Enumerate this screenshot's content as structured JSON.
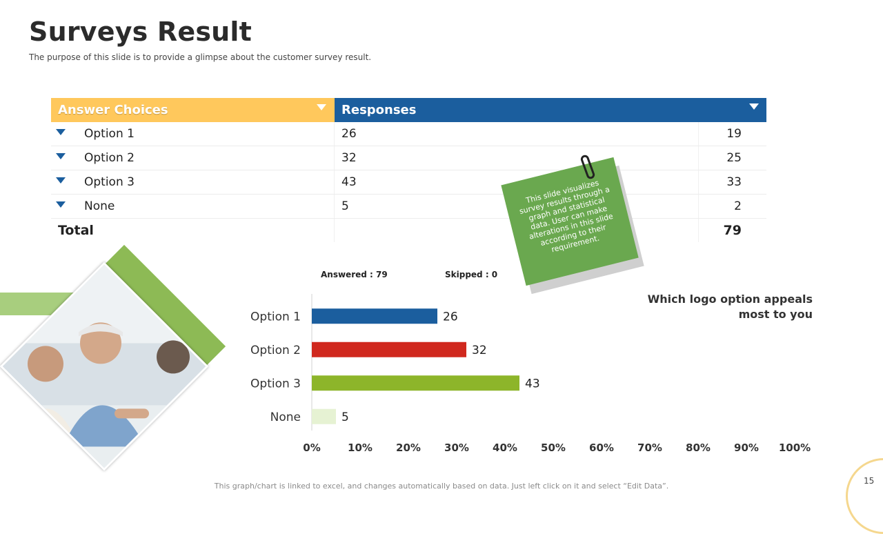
{
  "header": {
    "title": "Surveys Result",
    "subtitle": "The purpose of this slide is to provide a glimpse about the customer survey result."
  },
  "table": {
    "col_answer": "Answer Choices",
    "col_responses": "Responses",
    "rows": [
      {
        "label": "Option 1",
        "count": "26",
        "value": "19"
      },
      {
        "label": "Option 2",
        "count": "32",
        "value": "25"
      },
      {
        "label": "Option 3",
        "count": "43",
        "value": "33"
      },
      {
        "label": "None",
        "count": "5",
        "value": "2"
      }
    ],
    "total_label": "Total",
    "total_value": "79"
  },
  "note": {
    "text": "This slide visualizes survey results through a graph and statistical data. User can make alterations in this slide according to their requirement."
  },
  "stats": {
    "answered": "Answered : 79",
    "skipped": "Skipped : 0"
  },
  "question": "Which logo option appeals most to you",
  "footer": {
    "text": "This graph/chart is linked to excel, and changes automatically based on data. Just left click on it and select “Edit Data”.",
    "page_number": "15"
  },
  "chart_data": {
    "type": "bar",
    "orientation": "horizontal",
    "categories": [
      "Option 1",
      "Option 2",
      "Option 3",
      "None"
    ],
    "values": [
      26,
      32,
      43,
      5
    ],
    "data_labels": [
      "26",
      "32",
      "43",
      "5"
    ],
    "bar_colors": [
      "#1B5E9E",
      "#D0281E",
      "#8DB52A",
      "#E6F2D3"
    ],
    "x_ticks": [
      "0%",
      "10%",
      "20%",
      "30%",
      "40%",
      "50%",
      "60%",
      "70%",
      "80%",
      "90%",
      "100%"
    ],
    "xlim": [
      0,
      100
    ],
    "grid": false
  }
}
